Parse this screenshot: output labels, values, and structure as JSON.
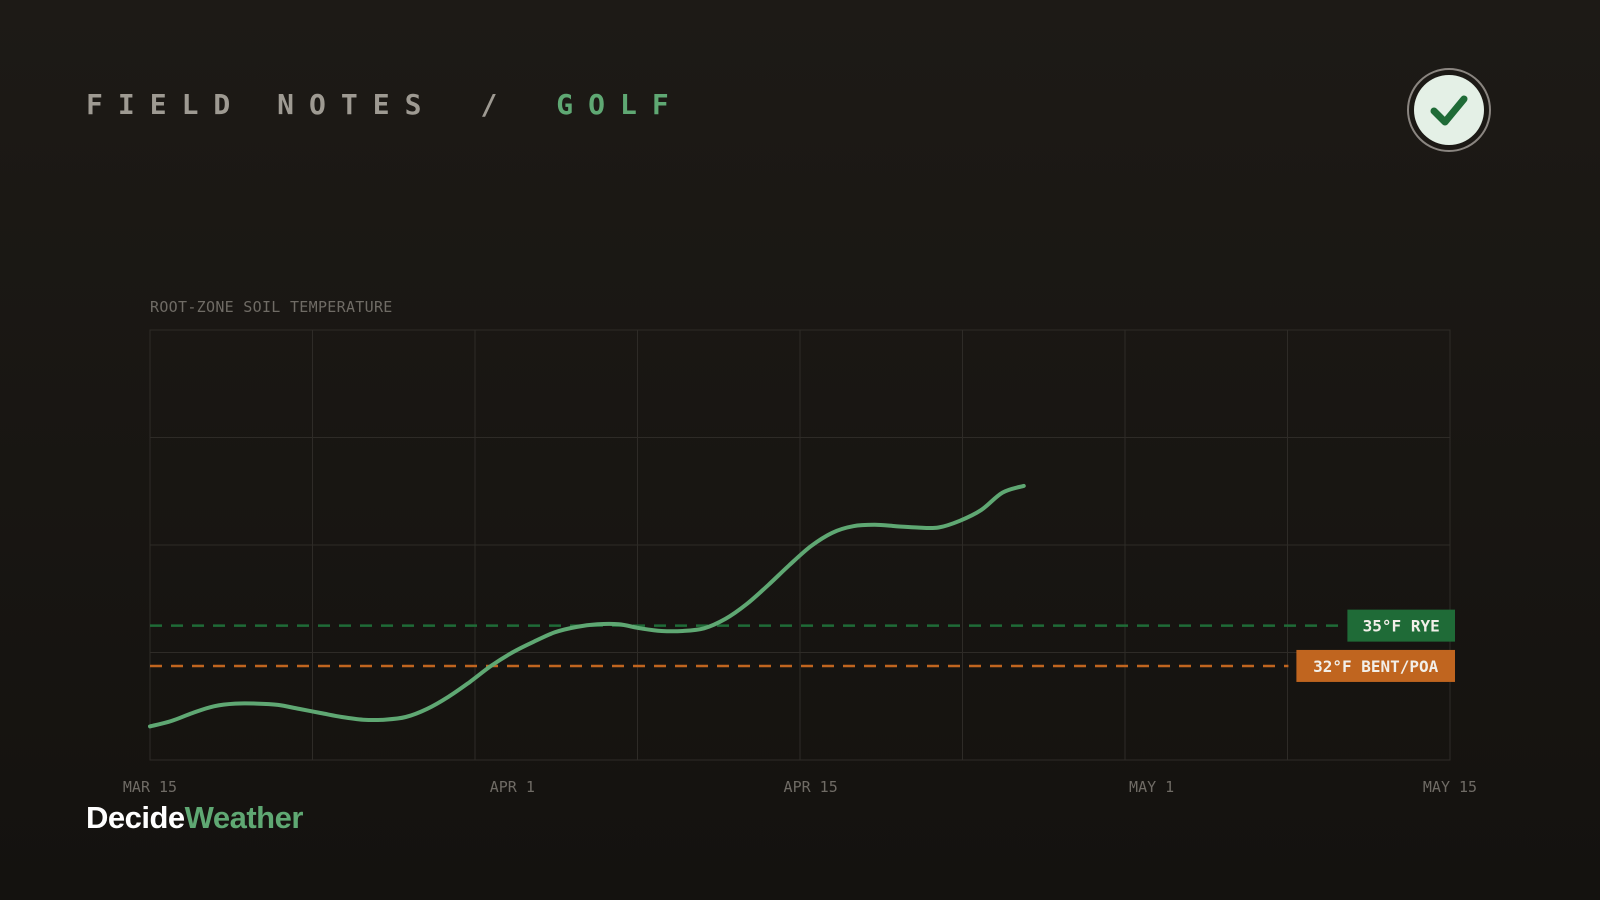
{
  "header": {
    "section": "FIELD NOTES",
    "separator": "/",
    "topic": "GOLF"
  },
  "badge": {
    "icon": "checkmark-icon",
    "color": "#1f6b37"
  },
  "brand": {
    "part1": "Decide",
    "part2": "Weather"
  },
  "chart_data": {
    "type": "line",
    "title": "ROOT-ZONE SOIL TEMPERATURE",
    "xlabel": "",
    "ylabel": "",
    "x_ticks": [
      "MAR 15",
      "APR 1",
      "APR 15",
      "MAY 1",
      "MAY 15"
    ],
    "grid": true,
    "series": [
      {
        "color": "#5fa873",
        "values": [
          [
            "Mar 15",
            27.5
          ],
          [
            "Mar 16",
            27.9
          ],
          [
            "Mar 17",
            28.5
          ],
          [
            "Mar 18",
            29.0
          ],
          [
            "Mar 19",
            29.2
          ],
          [
            "Mar 20",
            29.2
          ],
          [
            "Mar 21",
            29.1
          ],
          [
            "Mar 22",
            28.8
          ],
          [
            "Mar 23",
            28.5
          ],
          [
            "Mar 24",
            28.2
          ],
          [
            "Mar 25",
            28.0
          ],
          [
            "Mar 26",
            28.0
          ],
          [
            "Mar 27",
            28.2
          ],
          [
            "Mar 28",
            28.8
          ],
          [
            "Mar 29",
            29.7
          ],
          [
            "Mar 30",
            30.8
          ],
          [
            "Mar 31",
            32.0
          ],
          [
            "Apr 1",
            33.0
          ],
          [
            "Apr 2",
            33.8
          ],
          [
            "Apr 3",
            34.5
          ],
          [
            "Apr 4",
            34.9
          ],
          [
            "Apr 5",
            35.1
          ],
          [
            "Apr 6",
            35.1
          ],
          [
            "Apr 7",
            34.8
          ],
          [
            "Apr 8",
            34.6
          ],
          [
            "Apr 9",
            34.6
          ],
          [
            "Apr 10",
            34.8
          ],
          [
            "Apr 11",
            35.5
          ],
          [
            "Apr 12",
            36.6
          ],
          [
            "Apr 13",
            38.0
          ],
          [
            "Apr 14",
            39.5
          ],
          [
            "Apr 15",
            40.9
          ],
          [
            "Apr 16",
            41.9
          ],
          [
            "Apr 17",
            42.4
          ],
          [
            "Apr 18",
            42.5
          ],
          [
            "Apr 19",
            42.4
          ],
          [
            "Apr 20",
            42.3
          ],
          [
            "Apr 21",
            42.3
          ],
          [
            "Apr 22",
            42.8
          ],
          [
            "Apr 23",
            43.6
          ],
          [
            "Apr 24",
            44.9
          ],
          [
            "Apr 25",
            45.4
          ]
        ]
      }
    ],
    "thresholds": [
      {
        "label": "35°F RYE",
        "value": 35,
        "color": "#1f6b37"
      },
      {
        "label": "32°F BENT/POA",
        "value": 32,
        "color": "#c0651f"
      }
    ]
  }
}
